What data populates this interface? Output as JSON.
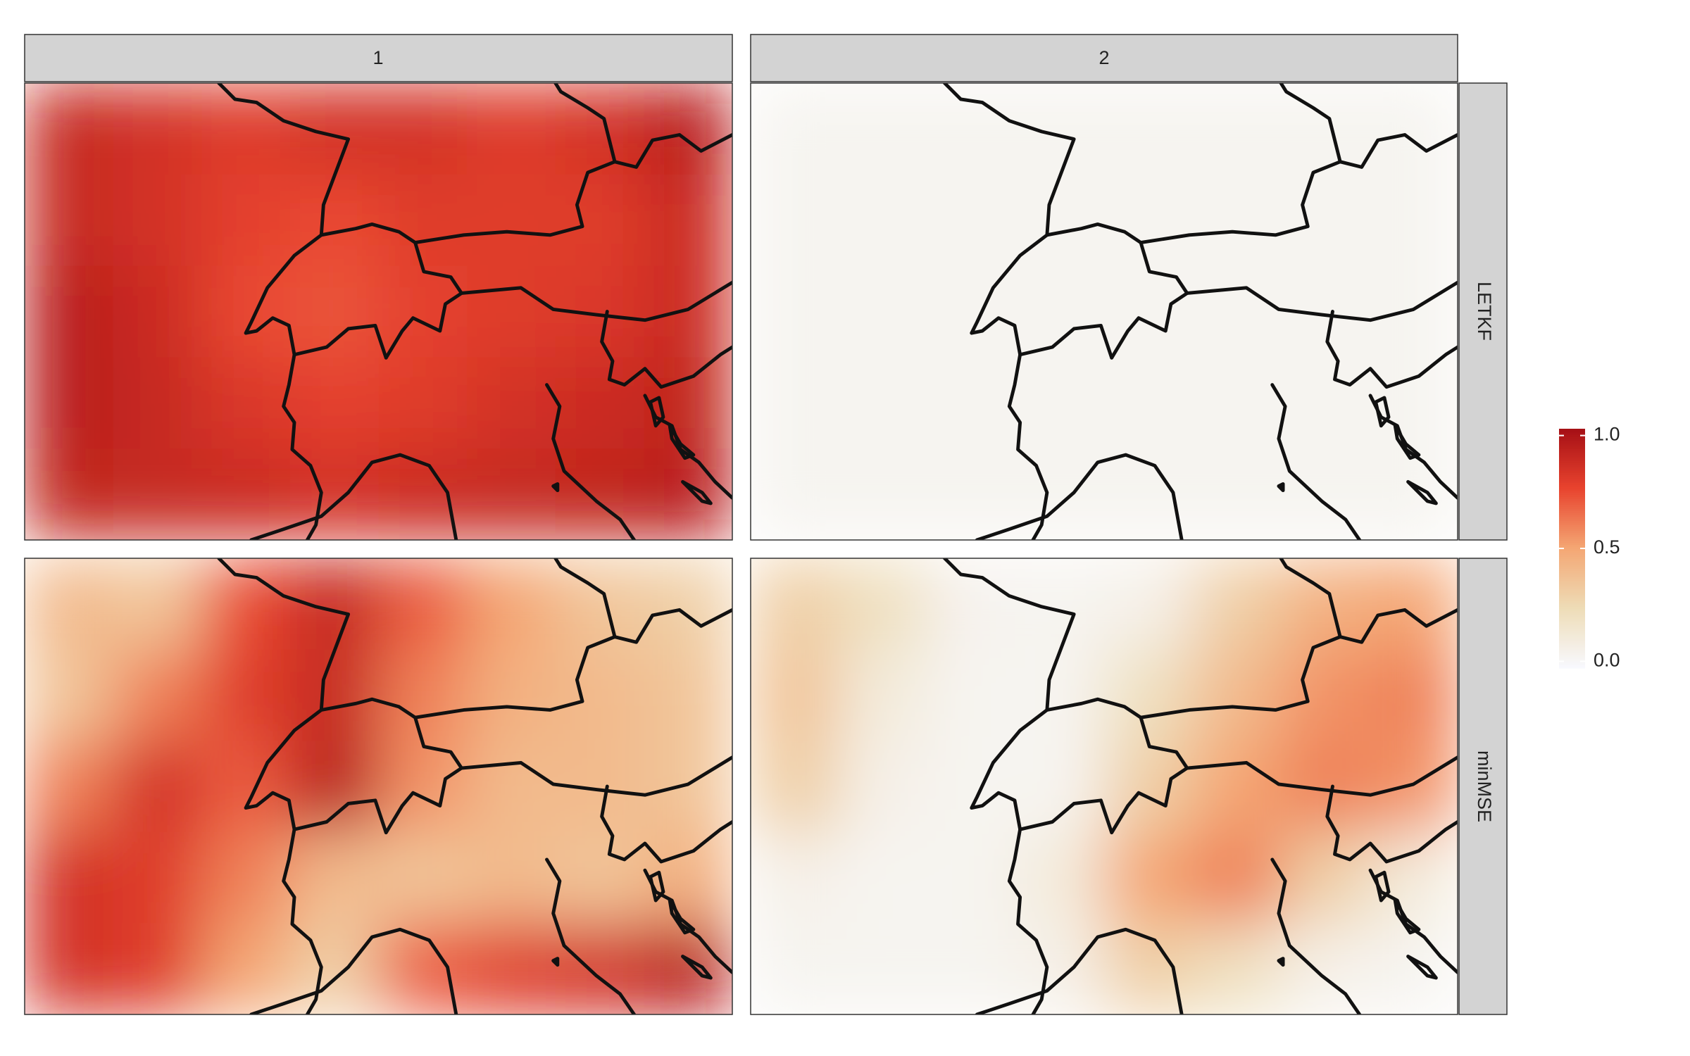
{
  "chart_data": {
    "type": "heatmap",
    "col_strips": [
      "1",
      "2"
    ],
    "row_strips": [
      "LETKF",
      "minMSE"
    ],
    "panels": [
      {
        "values": [
          [
            0.9,
            0.85,
            0.8,
            0.85,
            0.85,
            0.8,
            0.85,
            0.95
          ],
          [
            0.9,
            0.85,
            0.78,
            0.75,
            0.8,
            0.8,
            0.8,
            0.88
          ],
          [
            0.95,
            0.88,
            0.75,
            0.72,
            0.78,
            0.8,
            0.82,
            0.88
          ],
          [
            0.95,
            0.9,
            0.82,
            0.78,
            0.8,
            0.85,
            0.88,
            0.92
          ],
          [
            0.92,
            0.9,
            0.88,
            0.85,
            0.88,
            0.9,
            0.92,
            0.95
          ]
        ]
      },
      {
        "values": [
          [
            0.02,
            0.02,
            0.02,
            0.02,
            0.02,
            0.02,
            0.02,
            0.02
          ],
          [
            0.02,
            0.02,
            0.02,
            0.02,
            0.02,
            0.02,
            0.02,
            0.02
          ],
          [
            0.02,
            0.02,
            0.02,
            0.02,
            0.02,
            0.02,
            0.02,
            0.02
          ],
          [
            0.02,
            0.02,
            0.02,
            0.02,
            0.02,
            0.02,
            0.02,
            0.02
          ],
          [
            0.02,
            0.02,
            0.02,
            0.02,
            0.02,
            0.02,
            0.02,
            0.02
          ]
        ]
      },
      {
        "values": [
          [
            0.4,
            0.35,
            0.75,
            0.9,
            0.7,
            0.5,
            0.35,
            0.3
          ],
          [
            0.35,
            0.6,
            0.8,
            0.9,
            0.6,
            0.45,
            0.4,
            0.35
          ],
          [
            0.6,
            0.85,
            0.7,
            0.95,
            0.55,
            0.4,
            0.4,
            0.35
          ],
          [
            0.85,
            0.8,
            0.6,
            0.4,
            0.35,
            0.4,
            0.35,
            0.45
          ],
          [
            0.85,
            0.8,
            0.5,
            0.3,
            0.7,
            0.8,
            0.85,
            0.95
          ]
        ]
      },
      {
        "values": [
          [
            0.3,
            0.2,
            0.03,
            0.02,
            0.05,
            0.3,
            0.45,
            0.5
          ],
          [
            0.35,
            0.1,
            0.02,
            0.02,
            0.2,
            0.4,
            0.55,
            0.6
          ],
          [
            0.3,
            0.05,
            0.02,
            0.02,
            0.3,
            0.5,
            0.6,
            0.55
          ],
          [
            0.05,
            0.02,
            0.02,
            0.1,
            0.5,
            0.6,
            0.3,
            0.1
          ],
          [
            0.02,
            0.02,
            0.02,
            0.05,
            0.3,
            0.2,
            0.05,
            0.02
          ]
        ]
      }
    ],
    "colorbar": {
      "lim": [
        -0.03,
        1.03
      ],
      "ticks": [
        {
          "value": 0,
          "label": "0.0"
        },
        {
          "value": 0.5,
          "label": "0.5"
        },
        {
          "value": 1,
          "label": "1.0"
        }
      ],
      "colors": [
        "#f8f9fe",
        "#eedcb6",
        "#f4a673",
        "#e8432e",
        "#a50f15"
      ]
    }
  }
}
